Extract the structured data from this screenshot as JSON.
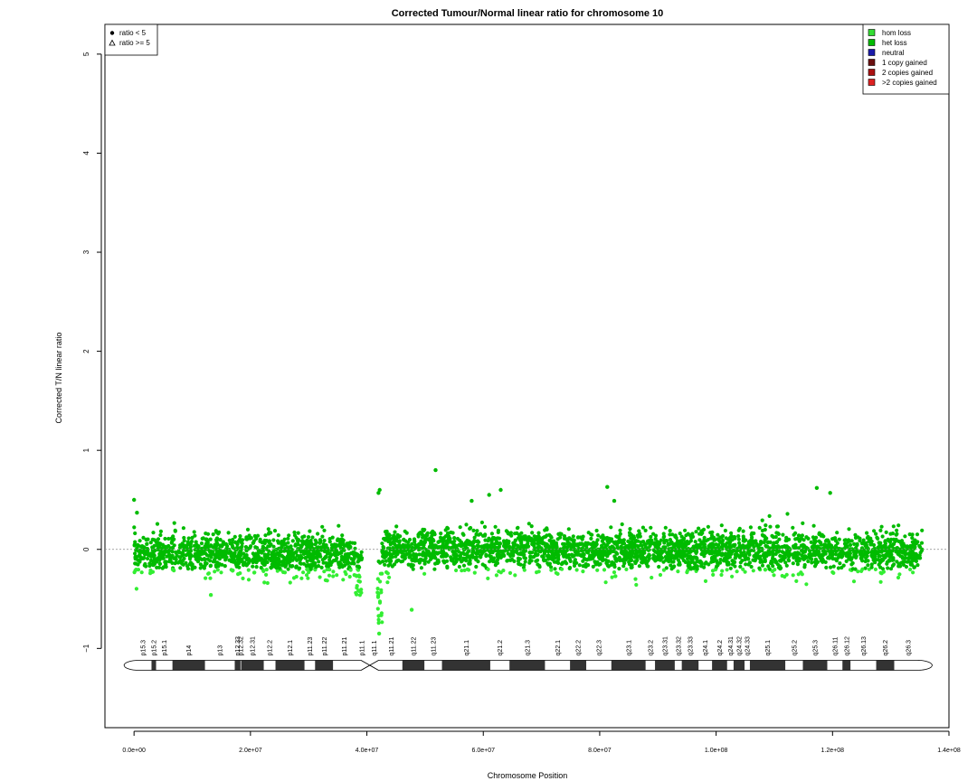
{
  "chart_data": {
    "type": "scatter",
    "title": "Corrected Tumour/Normal linear ratio for chromosome  10",
    "xlabel": "Chromosome Position",
    "ylabel": "Corrected T/N linear ratio",
    "xlim": [
      -5000000,
      140000000
    ],
    "ylim": [
      -1.8,
      5.3
    ],
    "x_ticks": [
      0,
      20000000,
      40000000,
      60000000,
      80000000,
      100000000,
      120000000,
      140000000
    ],
    "x_tick_labels": [
      "0.0e+00",
      "2.0e+07",
      "4.0e+07",
      "6.0e+07",
      "8.0e+07",
      "1.0e+08",
      "1.2e+08",
      "1.4e+08"
    ],
    "y_ticks": [
      -1,
      0,
      1,
      2,
      3,
      4,
      5
    ],
    "y_tick_labels": [
      "−1",
      "0",
      "1",
      "2",
      "3",
      "4",
      "5"
    ],
    "reference_line_y": 0,
    "legend_shapes": {
      "position": "top-left",
      "entries": [
        {
          "label": "ratio < 5",
          "marker": "circle"
        },
        {
          "label": "ratio >= 5",
          "marker": "triangle"
        }
      ]
    },
    "legend_states": {
      "position": "top-right",
      "entries": [
        {
          "label": "hom loss",
          "color": "#33dd33"
        },
        {
          "label": "het loss",
          "color": "#00bb00"
        },
        {
          "label": "neutral",
          "color": "#1a1aaa"
        },
        {
          "label": "1 copy gained",
          "color": "#6b1010"
        },
        {
          "label": "2 copies gained",
          "color": "#aa1111"
        },
        {
          "label": ">2 copies gained",
          "color": "#dd2222"
        }
      ]
    },
    "point_color": "#00bb00",
    "point_color_low": "#33ee33",
    "series_segments": [
      {
        "x_start": 0,
        "x_end": 38000000,
        "mean": -0.05,
        "sd": 0.1
      },
      {
        "x_start": 38000000,
        "x_end": 39200000,
        "mean": -0.25,
        "sd": 0.15
      },
      {
        "x_start": 41800000,
        "x_end": 42600000,
        "mean": -0.45,
        "sd": 0.22
      },
      {
        "x_start": 42600000,
        "x_end": 71000000,
        "mean": 0.0,
        "sd": 0.1
      },
      {
        "x_start": 71000000,
        "x_end": 135400000,
        "mean": -0.02,
        "sd": 0.1
      }
    ],
    "notable_points": [
      {
        "x": 0,
        "y": 0.5
      },
      {
        "x": 500000,
        "y": 0.37
      },
      {
        "x": 42200000,
        "y": 0.6
      },
      {
        "x": 42000000,
        "y": 0.57
      },
      {
        "x": 42100000,
        "y": -0.85
      },
      {
        "x": 47700000,
        "y": -0.61
      },
      {
        "x": 51800000,
        "y": 0.8
      },
      {
        "x": 58000000,
        "y": 0.49
      },
      {
        "x": 61000000,
        "y": 0.55
      },
      {
        "x": 63000000,
        "y": 0.6
      },
      {
        "x": 81300000,
        "y": 0.63
      },
      {
        "x": 82500000,
        "y": 0.49
      },
      {
        "x": 117300000,
        "y": 0.62
      },
      {
        "x": 119600000,
        "y": 0.57
      },
      {
        "x": 13200000,
        "y": -0.46
      }
    ],
    "ideogram": {
      "y": -1.17,
      "x_start": 0,
      "x_end": 135400000,
      "centromere": [
        39000000,
        42000000
      ],
      "bands": [
        {
          "name": "p15.3",
          "start": 0,
          "end": 3000000,
          "stain": "gneg"
        },
        {
          "name": "p15.2",
          "start": 3000000,
          "end": 3800000,
          "stain": "gpos"
        },
        {
          "name": "p15.1",
          "start": 3800000,
          "end": 6600000,
          "stain": "gneg"
        },
        {
          "name": "p14",
          "start": 6600000,
          "end": 12200000,
          "stain": "gpos"
        },
        {
          "name": "p13",
          "start": 12200000,
          "end": 17300000,
          "stain": "gneg"
        },
        {
          "name": "p12.33",
          "start": 17300000,
          "end": 18300000,
          "stain": "gpos"
        },
        {
          "name": "p12.32",
          "start": 18300000,
          "end": 18400000,
          "stain": "gneg"
        },
        {
          "name": "p12.31",
          "start": 18400000,
          "end": 22300000,
          "stain": "gpos"
        },
        {
          "name": "p12.2",
          "start": 22300000,
          "end": 24300000,
          "stain": "gneg"
        },
        {
          "name": "p12.1",
          "start": 24300000,
          "end": 29300000,
          "stain": "gpos"
        },
        {
          "name": "p11.23",
          "start": 29300000,
          "end": 31100000,
          "stain": "gneg"
        },
        {
          "name": "p11.22",
          "start": 31100000,
          "end": 34200000,
          "stain": "gpos"
        },
        {
          "name": "p11.21",
          "start": 34200000,
          "end": 38000000,
          "stain": "gneg"
        },
        {
          "name": "p11.1",
          "start": 38000000,
          "end": 40200000,
          "stain": "acen"
        },
        {
          "name": "q11.1",
          "start": 40200000,
          "end": 42300000,
          "stain": "acen"
        },
        {
          "name": "q11.21",
          "start": 42300000,
          "end": 46100000,
          "stain": "gneg"
        },
        {
          "name": "q11.22",
          "start": 46100000,
          "end": 49900000,
          "stain": "gpos"
        },
        {
          "name": "q11.23",
          "start": 49900000,
          "end": 52900000,
          "stain": "gneg"
        },
        {
          "name": "q21.1",
          "start": 52900000,
          "end": 61200000,
          "stain": "gpos"
        },
        {
          "name": "q21.2",
          "start": 61200000,
          "end": 64500000,
          "stain": "gneg"
        },
        {
          "name": "q21.3",
          "start": 64500000,
          "end": 70600000,
          "stain": "gpos"
        },
        {
          "name": "q22.1",
          "start": 70600000,
          "end": 74900000,
          "stain": "gneg"
        },
        {
          "name": "q22.2",
          "start": 74900000,
          "end": 77700000,
          "stain": "gpos"
        },
        {
          "name": "q22.3",
          "start": 77700000,
          "end": 82000000,
          "stain": "gneg"
        },
        {
          "name": "q23.1",
          "start": 82000000,
          "end": 87900000,
          "stain": "gpos"
        },
        {
          "name": "q23.2",
          "start": 87900000,
          "end": 89500000,
          "stain": "gneg"
        },
        {
          "name": "q23.31",
          "start": 89500000,
          "end": 92900000,
          "stain": "gpos"
        },
        {
          "name": "q23.32",
          "start": 92900000,
          "end": 94100000,
          "stain": "gneg"
        },
        {
          "name": "q23.33",
          "start": 94100000,
          "end": 97000000,
          "stain": "gpos"
        },
        {
          "name": "q24.1",
          "start": 97000000,
          "end": 99300000,
          "stain": "gneg"
        },
        {
          "name": "q24.2",
          "start": 99300000,
          "end": 101900000,
          "stain": "gpos"
        },
        {
          "name": "q24.31",
          "start": 101900000,
          "end": 103000000,
          "stain": "gneg"
        },
        {
          "name": "q24.32",
          "start": 103000000,
          "end": 104900000,
          "stain": "gpos"
        },
        {
          "name": "q24.33",
          "start": 104900000,
          "end": 105800000,
          "stain": "gneg"
        },
        {
          "name": "q25.1",
          "start": 105800000,
          "end": 111900000,
          "stain": "gpos"
        },
        {
          "name": "q25.2",
          "start": 111900000,
          "end": 114900000,
          "stain": "gneg"
        },
        {
          "name": "q25.3",
          "start": 114900000,
          "end": 119100000,
          "stain": "gpos"
        },
        {
          "name": "q26.11",
          "start": 119100000,
          "end": 121700000,
          "stain": "gneg"
        },
        {
          "name": "q26.12",
          "start": 121700000,
          "end": 123100000,
          "stain": "gpos"
        },
        {
          "name": "q26.13",
          "start": 123100000,
          "end": 127500000,
          "stain": "gneg"
        },
        {
          "name": "q26.2",
          "start": 127500000,
          "end": 130600000,
          "stain": "gpos"
        },
        {
          "name": "q26.3",
          "start": 130600000,
          "end": 135400000,
          "stain": "gneg"
        }
      ]
    }
  }
}
